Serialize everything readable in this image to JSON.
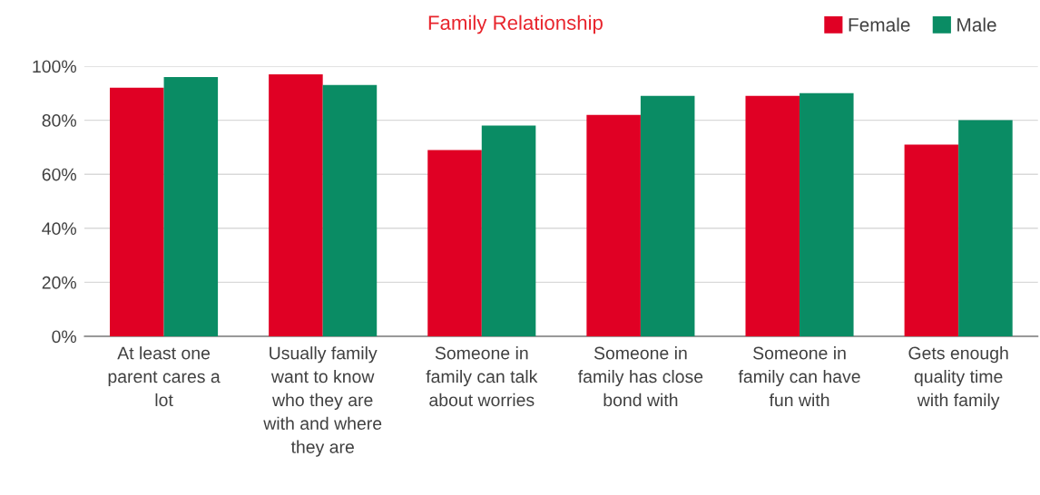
{
  "chart_data": {
    "type": "bar",
    "title": "Family Relationship",
    "categories": [
      "At least one\nparent cares a\nlot",
      "Usually family\nwant to know\nwho they are\nwith and where\nthey are",
      "Someone in\nfamily can talk\nabout worries",
      "Someone in\nfamily has close\nbond with",
      "Someone in\nfamily can have\nfun with",
      "Gets enough\nquality time\nwith family"
    ],
    "series": [
      {
        "name": "Female",
        "color": "#e00024",
        "values": [
          92,
          97,
          69,
          82,
          89,
          71
        ]
      },
      {
        "name": "Male",
        "color": "#0a8c64",
        "values": [
          96,
          93,
          78,
          89,
          90,
          80
        ]
      }
    ],
    "ylim": [
      0,
      100
    ],
    "yticks": [
      {
        "value": 0,
        "label": "0%"
      },
      {
        "value": 20,
        "label": "20%"
      },
      {
        "value": 40,
        "label": "40%"
      },
      {
        "value": 60,
        "label": "60%"
      },
      {
        "value": 80,
        "label": "80%"
      },
      {
        "value": 100,
        "label": "100%"
      }
    ],
    "grid": "y",
    "legend": "top right"
  }
}
